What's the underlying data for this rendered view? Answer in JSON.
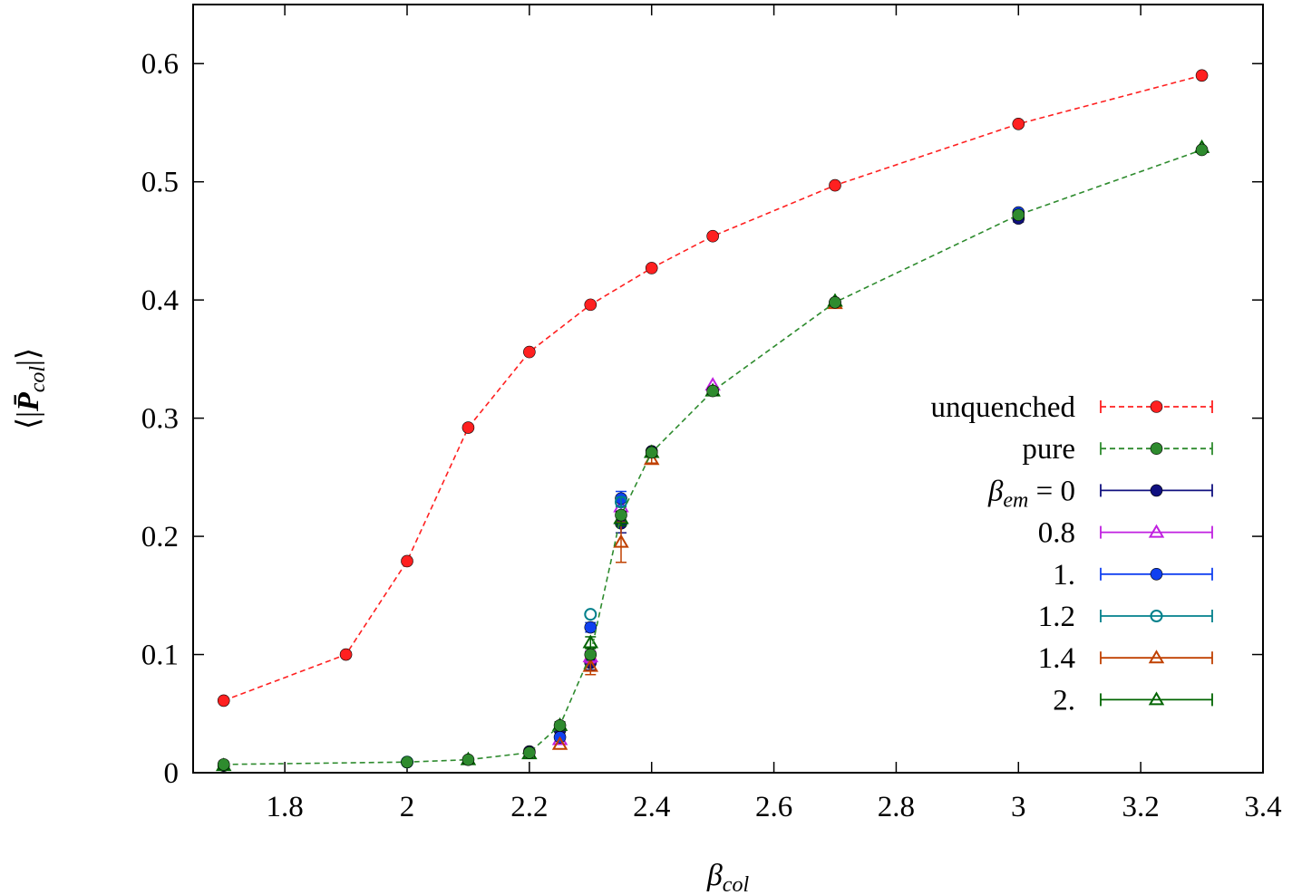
{
  "chart_data": {
    "type": "line",
    "xlabel": "βcol",
    "xlabel_parts": {
      "main": "β",
      "sub": "col"
    },
    "ylabel": "⟨|P̄col|⟩",
    "ylabel_parts": {
      "open": "⟨|",
      "main": "P̄",
      "sub": "col",
      "close": "|⟩"
    },
    "xlim": [
      1.65,
      3.4
    ],
    "ylim": [
      0,
      0.65
    ],
    "xticks": [
      1.8,
      2,
      2.2,
      2.4,
      2.6,
      2.8,
      3,
      3.2,
      3.4
    ],
    "xtick_labels": [
      "1.8",
      "2",
      "2.2",
      "2.4",
      "2.6",
      "2.8",
      "3",
      "3.2",
      "3.4"
    ],
    "yticks": [
      0,
      0.1,
      0.2,
      0.3,
      0.4,
      0.5,
      0.6
    ],
    "ytick_labels": [
      "0",
      "0.1",
      "0.2",
      "0.3",
      "0.4",
      "0.5",
      "0.6"
    ],
    "grid": false,
    "legend_position": "right",
    "series": [
      {
        "name": "unquenched",
        "color": "#ff2020",
        "marker": "filled-circle",
        "line": "dashed",
        "x": [
          1.7,
          1.9,
          2.0,
          2.1,
          2.2,
          2.3,
          2.4,
          2.5,
          2.7,
          3.0,
          3.3
        ],
        "y": [
          0.061,
          0.1,
          0.179,
          0.292,
          0.356,
          0.396,
          0.427,
          0.454,
          0.497,
          0.549,
          0.59
        ],
        "err": [
          0,
          0,
          0,
          0,
          0,
          0,
          0,
          0,
          0,
          0,
          0
        ]
      },
      {
        "name": "pure",
        "color": "#2e8b2e",
        "marker": "filled-circle",
        "line": "dashed",
        "x": [
          1.7,
          2.0,
          2.1,
          2.2,
          2.25,
          2.3,
          2.35,
          2.4,
          2.5,
          2.7,
          3.0,
          3.3
        ],
        "y": [
          0.007,
          0.009,
          0.011,
          0.017,
          0.04,
          0.1,
          0.218,
          0.271,
          0.323,
          0.398,
          0.472,
          0.527
        ],
        "err": [
          0,
          0,
          0,
          0,
          0,
          0,
          0,
          0,
          0,
          0,
          0,
          0
        ]
      },
      {
        "name": "βem = 0",
        "label_parts": {
          "main": "β",
          "sub": "em",
          "rest": " = 0"
        },
        "color": "#10107f",
        "marker": "filled-circle",
        "line": "none",
        "x": [
          1.7,
          2.0,
          2.2,
          2.25,
          2.3,
          2.35,
          2.4,
          2.7,
          3.0
        ],
        "y": [
          0.006,
          0.009,
          0.018,
          0.036,
          0.093,
          0.211,
          0.272,
          0.398,
          0.469
        ],
        "err": [
          0,
          0,
          0,
          0.004,
          0.006,
          0.008,
          0,
          0,
          0.003
        ]
      },
      {
        "name": "0.8",
        "color": "#c020e0",
        "marker": "open-triangle",
        "line": "none",
        "x": [
          2.25,
          2.3,
          2.35,
          2.5
        ],
        "y": [
          0.028,
          0.098,
          0.225,
          0.328
        ],
        "err": [
          0,
          0.005,
          0.006,
          0
        ]
      },
      {
        "name": "1.",
        "color": "#1040f0",
        "marker": "filled-circle",
        "line": "none",
        "x": [
          2.25,
          2.3,
          2.35,
          3.0
        ],
        "y": [
          0.03,
          0.123,
          0.232,
          0.474
        ],
        "err": [
          0,
          0.004,
          0.006,
          0
        ]
      },
      {
        "name": "1.2",
        "color": "#00808b",
        "marker": "open-circle",
        "line": "none",
        "x": [
          2.0,
          2.3,
          2.35
        ],
        "y": [
          0.009,
          0.134,
          0.229
        ],
        "err": [
          0,
          0,
          0.004
        ]
      },
      {
        "name": "1.4",
        "color": "#c04000",
        "marker": "open-triangle",
        "line": "none",
        "x": [
          2.25,
          2.3,
          2.35,
          2.4,
          2.7
        ],
        "y": [
          0.024,
          0.09,
          0.195,
          0.265,
          0.397
        ],
        "err": [
          0,
          0.007,
          0.017,
          0.003,
          0
        ]
      },
      {
        "name": "2.",
        "color": "#006400",
        "marker": "open-triangle",
        "line": "none",
        "x": [
          1.7,
          2.1,
          2.2,
          2.25,
          2.3,
          2.35,
          2.4,
          2.5,
          2.7,
          3.3
        ],
        "y": [
          0.006,
          0.011,
          0.016,
          0.04,
          0.11,
          0.215,
          0.271,
          0.323,
          0.399,
          0.529
        ],
        "err": [
          0,
          0,
          0,
          0.003,
          0.005,
          0.006,
          0,
          0,
          0,
          0
        ]
      }
    ]
  }
}
